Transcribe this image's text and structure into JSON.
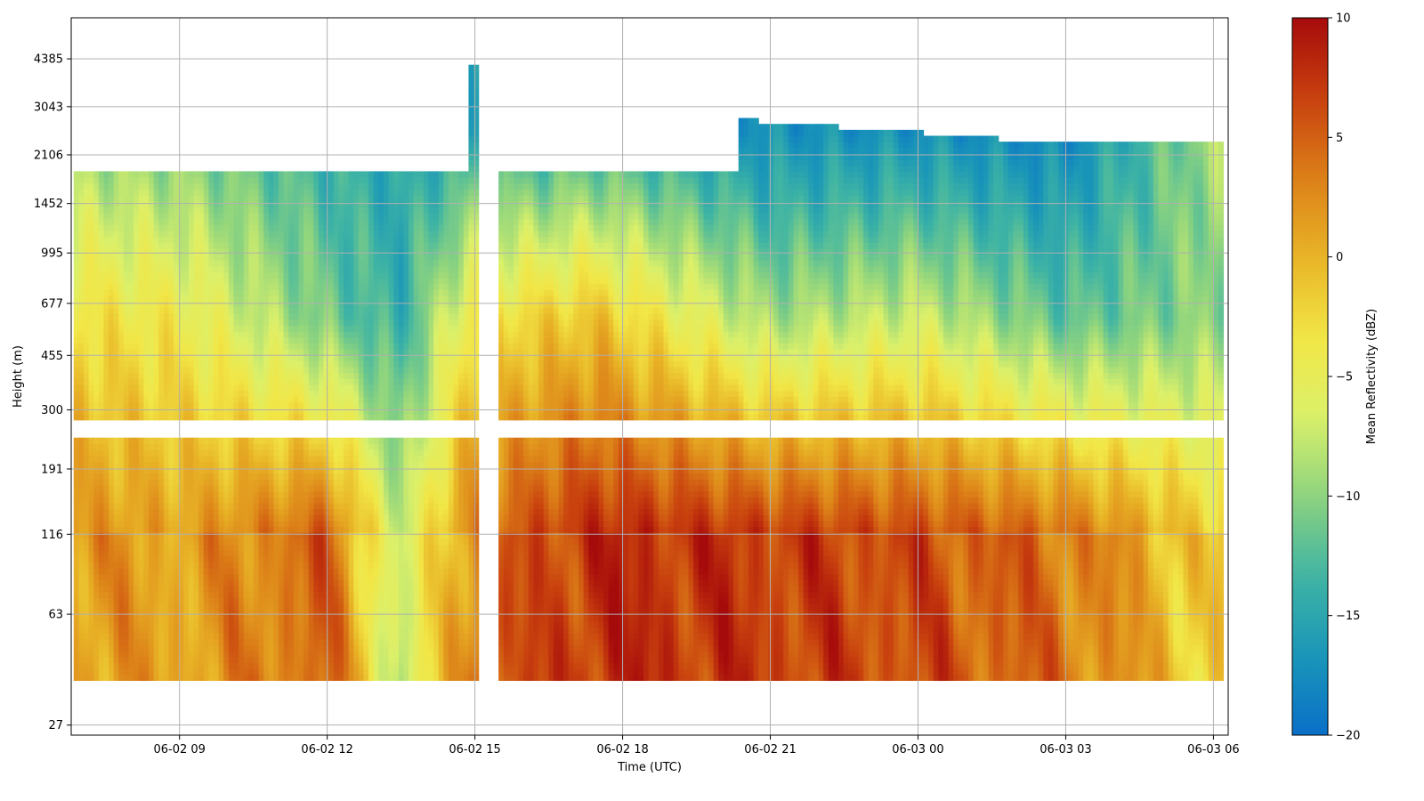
{
  "chart_data": {
    "type": "heatmap",
    "xlabel": "Time (UTC)",
    "ylabel": "Height (m)",
    "colorbar_label": "Mean Reflectivity (dBZ)",
    "x_ticks": [
      "06-02 09",
      "06-02 12",
      "06-02 15",
      "06-02 18",
      "06-02 21",
      "06-03 00",
      "06-03 03",
      "06-03 06"
    ],
    "x_tick_hours": [
      9,
      12,
      15,
      18,
      21,
      24,
      27,
      30
    ],
    "xlim_hours": [
      6.8,
      30.3
    ],
    "y_ticks": [
      "27",
      "63",
      "116",
      "191",
      "300",
      "455",
      "677",
      "995",
      "1452",
      "2106",
      "3043",
      "4385"
    ],
    "y_tick_values": [
      27,
      63,
      116,
      191,
      300,
      455,
      677,
      995,
      1452,
      2106,
      3043,
      4385
    ],
    "ylim": [
      25,
      6000
    ],
    "y_scale": "log",
    "colorbar_ticks": [
      "10",
      "5",
      "0",
      "−5",
      "−10",
      "−15",
      "−20"
    ],
    "colorbar_tick_values": [
      10,
      5,
      0,
      -5,
      -10,
      -15,
      -20
    ],
    "value_range": [
      -20,
      10
    ],
    "colormap": "jet-like (blue → teal → green → yellow → orange → red)",
    "grid": true,
    "colormap_stops": [
      "#0a6fc8",
      "#1a96b8",
      "#3fb4a4",
      "#8ed47e",
      "#dbf06a",
      "#f2e646",
      "#e8b326",
      "#dc8018",
      "#c8400e",
      "#a60b0b"
    ],
    "time_reflectivity_profile_note_free": [
      {
        "t_hours": 7,
        "lower_dbz": 2,
        "mid_dbz": -3,
        "upper_dbz": -10
      },
      {
        "t_hours": 9,
        "lower_dbz": 1,
        "mid_dbz": -4,
        "upper_dbz": -11
      },
      {
        "t_hours": 12,
        "lower_dbz": 5,
        "mid_dbz": -11,
        "upper_dbz": -14
      },
      {
        "t_hours": 13.5,
        "lower_dbz": -8,
        "mid_dbz": -14,
        "upper_dbz": -15
      },
      {
        "t_hours": 15,
        "lower_dbz": 4,
        "mid_dbz": -3,
        "upper_dbz": -15
      },
      {
        "t_hours": 17.5,
        "lower_dbz": 8,
        "mid_dbz": -1,
        "upper_dbz": -14
      },
      {
        "t_hours": 21,
        "lower_dbz": 7,
        "mid_dbz": -9,
        "upper_dbz": -17
      },
      {
        "t_hours": 24,
        "lower_dbz": 6,
        "mid_dbz": -7,
        "upper_dbz": -17
      },
      {
        "t_hours": 27,
        "lower_dbz": 4,
        "mid_dbz": -12,
        "upper_dbz": -18
      },
      {
        "t_hours": 30,
        "lower_dbz": -2,
        "mid_dbz": -10,
        "upper_dbz": -9
      }
    ]
  }
}
